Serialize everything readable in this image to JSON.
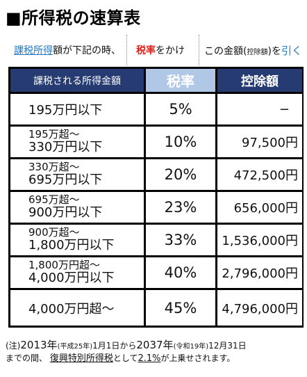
{
  "title": "■所得税の速算表",
  "instruction": {
    "part1_a": "課税所得",
    "part1_b": "額",
    "part1_c": "が下記の時、",
    "part2_a": "税率",
    "part2_b": "をかけ",
    "part3_a": "この金額(",
    "part3_b": "控除額",
    "part3_c": ")を",
    "part3_d": "引く"
  },
  "table": {
    "headers": [
      "課税される所得金額",
      "税率",
      "控除額"
    ],
    "rows": [
      {
        "income_l1": "195万円以下",
        "income_l2": "",
        "rate": "5%",
        "deduction": "−"
      },
      {
        "income_l1": "195万超〜",
        "income_l2": "330万円以下",
        "rate": "10%",
        "deduction": "97,500円"
      },
      {
        "income_l1": "330万超〜",
        "income_l2": "695万円以下",
        "rate": "20%",
        "deduction": "472,500円"
      },
      {
        "income_l1": "695万超〜",
        "income_l2": "900万円以下",
        "rate": "23%",
        "deduction": "656,000円"
      },
      {
        "income_l1": "900万超〜",
        "income_l2": "1,800万円以下",
        "rate": "33%",
        "deduction": "1,536,000円"
      },
      {
        "income_l1": "1,800万円超〜",
        "income_l2": "4,000万円以下",
        "rate": "40%",
        "deduction": "2,796,000円"
      },
      {
        "income_l1": "4,000万円超〜",
        "income_l2": "",
        "rate": "45%",
        "deduction": "4,796,000円"
      }
    ]
  },
  "note": {
    "p1": "(注)",
    "y1": "2013年",
    "e1": "(平成25年)",
    "d1": "1月1日から",
    "y2": "2037年",
    "e2": "(令和19年)",
    "d2": "12月31日",
    "p2": "までの間、",
    "tax": "復興特別所得税",
    "p3": "として",
    "pct": "2.1%",
    "p4": "が上乗せされます。"
  },
  "colors": {
    "header_dark": "#253b71",
    "header_light": "#b0c7e6",
    "accent_blue": "#1e78c8",
    "accent_red": "#e0231c"
  }
}
